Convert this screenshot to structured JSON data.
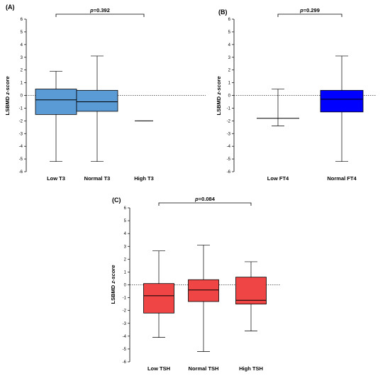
{
  "chart_data": [
    {
      "panel": "(A)",
      "type": "box",
      "ylabel": "LSBMD",
      "ylabel_italic": "z-score",
      "ylim": [
        -6,
        6
      ],
      "yticks": [
        "-6",
        "-5",
        "-4",
        "-3",
        "-2",
        "-1",
        "0",
        "1",
        "2",
        "3",
        "4",
        "5",
        "6"
      ],
      "reference_line": 0,
      "categories": [
        "Low T3",
        "Normal T3",
        "High T3"
      ],
      "boxes": [
        {
          "min": -5.2,
          "q1": -1.5,
          "median": -0.35,
          "q3": 0.5,
          "max": 1.9,
          "color": "#5b9bd5"
        },
        {
          "min": -5.2,
          "q1": -1.25,
          "median": -0.5,
          "q3": 0.4,
          "max": 3.1,
          "color": "#5b9bd5"
        },
        {
          "min": -2.0,
          "q1": -2.0,
          "median": -2.0,
          "q3": -2.0,
          "max": -2.0,
          "color": "#5b9bd5"
        }
      ],
      "comparison": {
        "from": 0,
        "to": 2,
        "p_label": "p",
        "p_value": "=0.392"
      }
    },
    {
      "panel": "(B)",
      "type": "box",
      "ylabel": "LSBMD",
      "ylabel_italic": "z-score",
      "ylim": [
        -6,
        6
      ],
      "yticks": [
        "-6",
        "-5",
        "-4",
        "-3",
        "-2",
        "-1",
        "0",
        "1",
        "2",
        "3",
        "4",
        "5",
        "6"
      ],
      "reference_line": 0,
      "categories": [
        "Low FT4",
        "Normal FT4"
      ],
      "boxes": [
        {
          "min": -2.4,
          "q1": -1.8,
          "median": -1.8,
          "q3": -1.8,
          "max": 0.5,
          "color": "#0000ff"
        },
        {
          "min": -5.2,
          "q1": -1.3,
          "median": -0.3,
          "q3": 0.4,
          "max": 3.1,
          "color": "#0000ff"
        }
      ],
      "comparison": {
        "from": 0,
        "to": 1,
        "p_label": "p",
        "p_value": "=0.299"
      }
    },
    {
      "panel": "(C)",
      "type": "box",
      "ylabel": "LSBMD",
      "ylabel_italic": "z-score",
      "ylim": [
        -6,
        6
      ],
      "yticks": [
        "-6",
        "-5",
        "-4",
        "-3",
        "-2",
        "-1",
        "0",
        "1",
        "2",
        "3",
        "4",
        "5",
        "6"
      ],
      "reference_line": 0,
      "categories": [
        "Low TSH",
        "Normal TSH",
        "High TSH"
      ],
      "boxes": [
        {
          "min": -4.1,
          "q1": -2.2,
          "median": -0.85,
          "q3": 0.1,
          "max": 2.65,
          "color": "#f04545"
        },
        {
          "min": -5.2,
          "q1": -1.3,
          "median": -0.4,
          "q3": 0.4,
          "max": 3.1,
          "color": "#f04545"
        },
        {
          "min": -3.6,
          "q1": -1.5,
          "median": -1.2,
          "q3": 0.6,
          "max": 1.8,
          "color": "#f04545"
        }
      ],
      "comparison": {
        "from": 0,
        "to": 2,
        "p_label": "p",
        "p_value": "=0.084"
      }
    }
  ]
}
